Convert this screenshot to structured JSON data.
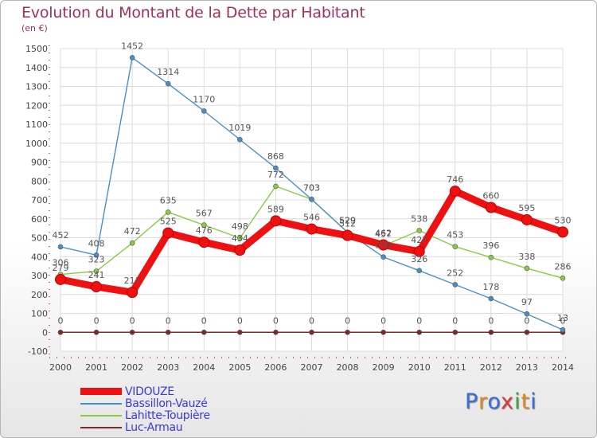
{
  "header": {
    "title": "Evolution du Montant de la Dette par Habitant",
    "subtitle": "(en €)"
  },
  "logo": {
    "text": "Proxiti",
    "colors": [
      "#3a6fd8",
      "#e68a1f",
      "#3a6fd8",
      "#d83a3a",
      "#3aa83a",
      "#e68a1f",
      "#3a6fd8"
    ]
  },
  "chart_data": {
    "type": "line",
    "title": "Evolution du Montant de la Dette par Habitant",
    "subtitle": "(en €)",
    "xlabel": "",
    "ylabel": "",
    "ylim": [
      -100,
      1500
    ],
    "yticks": [
      -100,
      0,
      100,
      200,
      300,
      400,
      500,
      600,
      700,
      800,
      900,
      1000,
      1100,
      1200,
      1300,
      1400,
      1500
    ],
    "x": [
      2000,
      2001,
      2002,
      2003,
      2004,
      2005,
      2006,
      2007,
      2008,
      2009,
      2010,
      2011,
      2012,
      2013,
      2014
    ],
    "grid": true,
    "legend_position": "bottom-left",
    "series": [
      {
        "name": "VIDOUZE",
        "color": "#ee1111",
        "style": "thick",
        "values": [
          279,
          241,
          211,
          525,
          476,
          434,
          589,
          546,
          512,
          462,
          427,
          746,
          660,
          595,
          530
        ],
        "labels": [
          "279",
          "241",
          "211",
          "525",
          "476",
          "434",
          "589",
          "546",
          "512",
          "462",
          "427",
          "746",
          "660",
          "595",
          "530"
        ]
      },
      {
        "name": "Bassillon-Vauzé",
        "color": "#4a90c8",
        "style": "thin",
        "values": [
          452,
          408,
          1452,
          1314,
          1170,
          1019,
          868,
          703,
          529,
          398,
          326,
          252,
          178,
          97,
          13
        ],
        "labels": [
          "452",
          "408",
          "1452",
          "1314",
          "1170",
          "1019",
          "868",
          "703",
          "529",
          "398",
          "326",
          "252",
          "178",
          "97",
          "13"
        ]
      },
      {
        "name": "Lahitte-Toupière",
        "color": "#88cc44",
        "style": "thin",
        "values": [
          306,
          323,
          472,
          635,
          567,
          498,
          772,
          703,
          529,
          457,
          538,
          453,
          396,
          338,
          286
        ],
        "labels": [
          "306",
          "323",
          "472",
          "635",
          "567",
          "498",
          "772",
          "703",
          "529",
          "457",
          "538",
          "453",
          "396",
          "338",
          "286"
        ]
      },
      {
        "name": "Luc-Armau",
        "color": "#7a2a2a",
        "style": "thin",
        "values": [
          0,
          0,
          0,
          0,
          0,
          0,
          0,
          0,
          0,
          0,
          0,
          0,
          0,
          0,
          0
        ],
        "labels": [
          "0",
          "0",
          "0",
          "0",
          "0",
          "0",
          "0",
          "0",
          "0",
          "0",
          "0",
          "0",
          "0",
          "0",
          "0"
        ]
      }
    ]
  }
}
